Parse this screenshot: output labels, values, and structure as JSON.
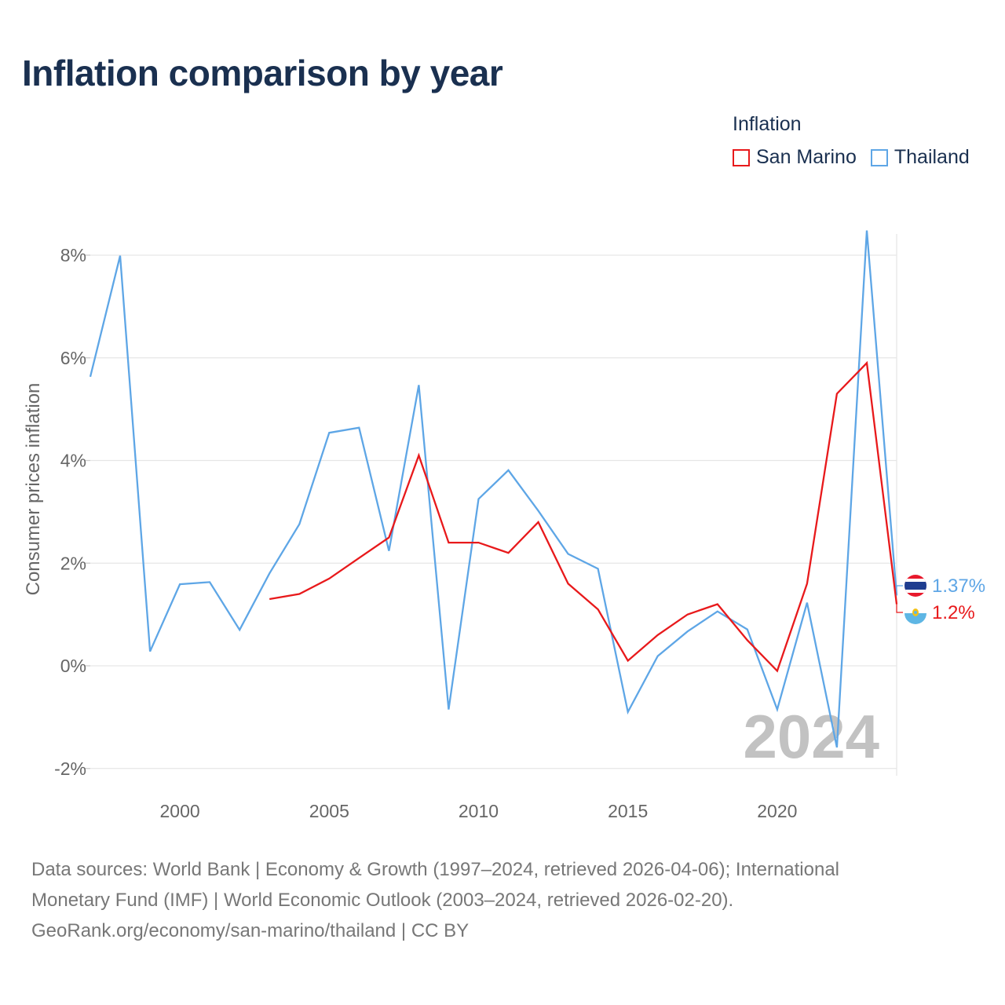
{
  "title": "Inflation comparison by year",
  "legend": {
    "title": "Inflation",
    "items": [
      {
        "label": "San Marino",
        "color": "#e8191b"
      },
      {
        "label": "Thailand",
        "color": "#5ea6e6"
      }
    ]
  },
  "year_watermark": "2024",
  "footer": {
    "line1": "Data sources: World Bank | Economy & Growth (1997–2024, retrieved 2026-04-06); International",
    "line2": "Monetary Fund (IMF) | World Economic Outlook (2003–2024, retrieved 2026-02-20).",
    "line3": "GeoRank.org/economy/san-marino/thailand | CC BY"
  },
  "chart_data": {
    "type": "line",
    "title": "Inflation comparison by year",
    "xlabel": "",
    "ylabel": "Consumer prices inflation",
    "xlim": [
      1997,
      2024
    ],
    "ylim": [
      -2,
      8.5
    ],
    "x_ticks": [
      2000,
      2005,
      2010,
      2015,
      2020
    ],
    "x_tick_labels": [
      "2000",
      "2005",
      "2010",
      "2015",
      "2020"
    ],
    "y_ticks": [
      -2,
      0,
      2,
      4,
      6,
      8
    ],
    "y_tick_labels": [
      "-2%",
      "0%",
      "2%",
      "4%",
      "6%",
      "8%"
    ],
    "grid": true,
    "series": [
      {
        "name": "San Marino",
        "color": "#e8191b",
        "end_label": "1.2%",
        "flag": "san-marino-flag-icon",
        "x": [
          2003,
          2004,
          2005,
          2006,
          2007,
          2008,
          2009,
          2010,
          2011,
          2012,
          2013,
          2014,
          2015,
          2016,
          2017,
          2018,
          2019,
          2020,
          2021,
          2022,
          2023,
          2024
        ],
        "values": [
          1.3,
          1.4,
          1.7,
          2.1,
          2.5,
          4.1,
          2.4,
          2.4,
          2.2,
          2.8,
          1.6,
          1.1,
          0.1,
          0.6,
          1.0,
          1.2,
          0.5,
          -0.1,
          1.6,
          5.3,
          5.9,
          1.2
        ]
      },
      {
        "name": "Thailand",
        "color": "#5ea6e6",
        "end_label": "1.37%",
        "flag": "thailand-flag-icon",
        "x": [
          1997,
          1998,
          1999,
          2000,
          2001,
          2002,
          2003,
          2004,
          2005,
          2006,
          2007,
          2008,
          2009,
          2010,
          2011,
          2012,
          2013,
          2014,
          2015,
          2016,
          2017,
          2018,
          2019,
          2020,
          2021,
          2022,
          2023,
          2024
        ],
        "values": [
          5.63,
          7.99,
          0.28,
          1.59,
          1.63,
          0.7,
          1.8,
          2.76,
          4.54,
          4.64,
          2.24,
          5.47,
          -0.85,
          3.25,
          3.81,
          3.02,
          2.18,
          1.89,
          -0.9,
          0.19,
          0.67,
          1.06,
          0.71,
          -0.85,
          1.23,
          -1.59,
          8.48,
          1.37
        ]
      }
    ]
  }
}
